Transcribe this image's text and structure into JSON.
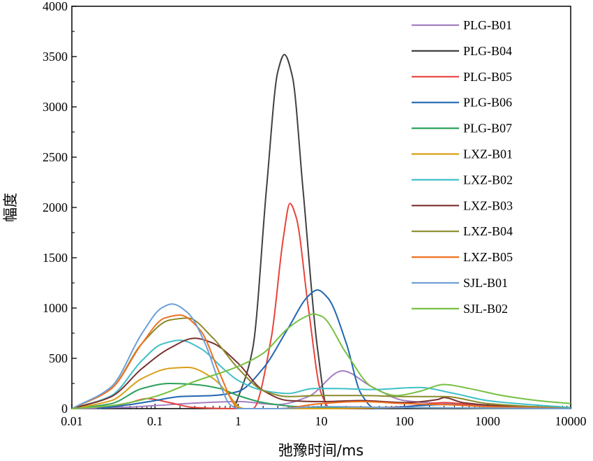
{
  "chart_data": {
    "type": "line",
    "xlabel": "弛豫时间/ms",
    "ylabel": "幅度",
    "x_scale": "log",
    "xlim": [
      0.01,
      10000
    ],
    "ylim": [
      0,
      4000
    ],
    "x_ticks": [
      "0.01",
      "0.1",
      "1",
      "10",
      "100",
      "1000",
      "10000"
    ],
    "y_ticks": [
      "0",
      "500",
      "1000",
      "1500",
      "2000",
      "2500",
      "3000",
      "3500",
      "4000"
    ],
    "grid": false,
    "legend_position": "top-right",
    "series": [
      {
        "name": "PLG-B01",
        "color": "#a47fc0",
        "points": [
          [
            0.01,
            0
          ],
          [
            0.05,
            15
          ],
          [
            0.1,
            30
          ],
          [
            0.3,
            55
          ],
          [
            1,
            70
          ],
          [
            3,
            40
          ],
          [
            7,
            120
          ],
          [
            18,
            375
          ],
          [
            40,
            220
          ],
          [
            100,
            80
          ],
          [
            300,
            50
          ],
          [
            1000,
            30
          ],
          [
            10000,
            10
          ]
        ]
      },
      {
        "name": "PLG-B04",
        "color": "#404040",
        "points": [
          [
            0.9,
            0
          ],
          [
            1.5,
            600
          ],
          [
            2.2,
            2200
          ],
          [
            3,
            3350
          ],
          [
            3.6,
            3520
          ],
          [
            4.5,
            3300
          ],
          [
            6,
            2200
          ],
          [
            9,
            600
          ],
          [
            12,
            0
          ],
          [
            30,
            0
          ],
          [
            100,
            0
          ]
        ]
      },
      {
        "name": "PLG-B05",
        "color": "#e8433c",
        "points": [
          [
            0.02,
            0
          ],
          [
            0.05,
            60
          ],
          [
            0.08,
            100
          ],
          [
            0.15,
            60
          ],
          [
            0.3,
            10
          ],
          [
            1,
            0
          ],
          [
            1.5,
            0
          ],
          [
            2.5,
            700
          ],
          [
            3.5,
            1700
          ],
          [
            4.2,
            2040
          ],
          [
            5,
            1900
          ],
          [
            7,
            1000
          ],
          [
            10,
            150
          ],
          [
            13,
            0
          ],
          [
            100,
            20
          ],
          [
            300,
            60
          ],
          [
            1000,
            20
          ],
          [
            10000,
            0
          ]
        ]
      },
      {
        "name": "PLG-B06",
        "color": "#2166b0",
        "points": [
          [
            0.02,
            0
          ],
          [
            0.05,
            40
          ],
          [
            0.1,
            80
          ],
          [
            0.2,
            120
          ],
          [
            0.5,
            130
          ],
          [
            1,
            170
          ],
          [
            2,
            400
          ],
          [
            4,
            800
          ],
          [
            7,
            1120
          ],
          [
            9,
            1180
          ],
          [
            12,
            1100
          ],
          [
            20,
            650
          ],
          [
            30,
            150
          ],
          [
            45,
            0
          ],
          [
            100,
            20
          ],
          [
            300,
            40
          ],
          [
            1000,
            20
          ],
          [
            10000,
            0
          ]
        ]
      },
      {
        "name": "PLG-B07",
        "color": "#2aa05a",
        "points": [
          [
            0.01,
            0
          ],
          [
            0.03,
            50
          ],
          [
            0.07,
            200
          ],
          [
            0.15,
            250
          ],
          [
            0.3,
            240
          ],
          [
            0.6,
            200
          ],
          [
            1,
            130
          ],
          [
            2,
            60
          ],
          [
            5,
            20
          ],
          [
            10,
            10
          ],
          [
            100,
            10
          ],
          [
            1000,
            5
          ],
          [
            10000,
            0
          ]
        ]
      },
      {
        "name": "LXZ-B01",
        "color": "#d9a016",
        "points": [
          [
            0.01,
            0
          ],
          [
            0.03,
            80
          ],
          [
            0.07,
            300
          ],
          [
            0.15,
            400
          ],
          [
            0.25,
            410
          ],
          [
            0.5,
            300
          ],
          [
            0.8,
            120
          ],
          [
            1,
            20
          ],
          [
            1.2,
            0
          ],
          [
            10,
            0
          ],
          [
            100,
            10
          ],
          [
            1000,
            5
          ],
          [
            10000,
            0
          ]
        ]
      },
      {
        "name": "LXZ-B02",
        "color": "#3fc0c8",
        "points": [
          [
            0.01,
            0
          ],
          [
            0.03,
            130
          ],
          [
            0.07,
            480
          ],
          [
            0.12,
            640
          ],
          [
            0.2,
            680
          ],
          [
            0.35,
            600
          ],
          [
            0.7,
            380
          ],
          [
            1,
            280
          ],
          [
            2,
            180
          ],
          [
            4,
            150
          ],
          [
            8,
            200
          ],
          [
            15,
            200
          ],
          [
            40,
            190
          ],
          [
            150,
            210
          ],
          [
            400,
            150
          ],
          [
            1000,
            80
          ],
          [
            10000,
            10
          ]
        ]
      },
      {
        "name": "LXZ-B03",
        "color": "#7a3030",
        "points": [
          [
            0.01,
            0
          ],
          [
            0.03,
            120
          ],
          [
            0.07,
            400
          ],
          [
            0.15,
            600
          ],
          [
            0.3,
            700
          ],
          [
            0.5,
            650
          ],
          [
            1,
            450
          ],
          [
            2,
            180
          ],
          [
            4,
            80
          ],
          [
            10,
            70
          ],
          [
            30,
            80
          ],
          [
            100,
            60
          ],
          [
            250,
            90
          ],
          [
            300,
            110
          ],
          [
            500,
            60
          ],
          [
            2000,
            20
          ],
          [
            10000,
            0
          ]
        ]
      },
      {
        "name": "LXZ-B04",
        "color": "#8a8a2a",
        "points": [
          [
            0.01,
            0
          ],
          [
            0.03,
            200
          ],
          [
            0.07,
            650
          ],
          [
            0.15,
            880
          ],
          [
            0.25,
            900
          ],
          [
            0.5,
            700
          ],
          [
            1,
            400
          ],
          [
            2,
            180
          ],
          [
            4,
            120
          ],
          [
            10,
            130
          ],
          [
            30,
            130
          ],
          [
            100,
            120
          ],
          [
            300,
            120
          ],
          [
            1000,
            50
          ],
          [
            10000,
            0
          ]
        ]
      },
      {
        "name": "LXZ-B05",
        "color": "#f07020",
        "points": [
          [
            0.01,
            0
          ],
          [
            0.03,
            200
          ],
          [
            0.07,
            650
          ],
          [
            0.13,
            900
          ],
          [
            0.2,
            930
          ],
          [
            0.35,
            780
          ],
          [
            0.6,
            350
          ],
          [
            0.9,
            40
          ],
          [
            1,
            0
          ],
          [
            3,
            0
          ],
          [
            10,
            50
          ],
          [
            30,
            70
          ],
          [
            100,
            50
          ],
          [
            300,
            40
          ],
          [
            1000,
            20
          ],
          [
            10000,
            0
          ]
        ]
      },
      {
        "name": "SJL-B01",
        "color": "#6f9fd6",
        "points": [
          [
            0.01,
            0
          ],
          [
            0.03,
            220
          ],
          [
            0.07,
            750
          ],
          [
            0.12,
            1000
          ],
          [
            0.16,
            1040
          ],
          [
            0.25,
            950
          ],
          [
            0.4,
            650
          ],
          [
            0.6,
            250
          ],
          [
            0.8,
            40
          ],
          [
            1,
            0
          ],
          [
            3,
            0
          ],
          [
            10,
            20
          ],
          [
            100,
            10
          ],
          [
            1000,
            5
          ],
          [
            10000,
            0
          ]
        ]
      },
      {
        "name": "SJL-B02",
        "color": "#76c043",
        "points": [
          [
            0.01,
            0
          ],
          [
            0.03,
            30
          ],
          [
            0.1,
            120
          ],
          [
            0.3,
            270
          ],
          [
            1,
            420
          ],
          [
            2,
            550
          ],
          [
            4,
            800
          ],
          [
            6,
            900
          ],
          [
            8,
            940
          ],
          [
            10,
            920
          ],
          [
            20,
            550
          ],
          [
            40,
            220
          ],
          [
            80,
            130
          ],
          [
            150,
            170
          ],
          [
            300,
            240
          ],
          [
            600,
            200
          ],
          [
            1500,
            130
          ],
          [
            4000,
            80
          ],
          [
            10000,
            50
          ]
        ]
      }
    ]
  }
}
